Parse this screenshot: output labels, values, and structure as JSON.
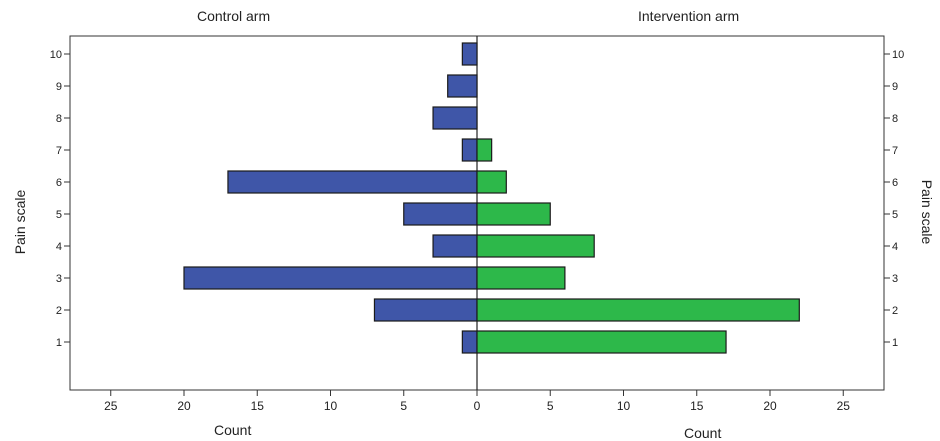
{
  "chart_data": {
    "type": "bar",
    "orientation": "horizontal-pyramid",
    "categories": [
      "1",
      "2",
      "3",
      "4",
      "5",
      "6",
      "7",
      "8",
      "9",
      "10"
    ],
    "series": [
      {
        "name": "Control arm",
        "values": [
          1,
          7,
          20,
          3,
          5,
          17,
          1,
          3,
          2,
          1
        ],
        "color": "#3F56A8"
      },
      {
        "name": "Intervention arm",
        "values": [
          17,
          22,
          6,
          8,
          5,
          2,
          1,
          0,
          0,
          0
        ],
        "color": "#2DB84A"
      }
    ],
    "xlabel_left": "Count",
    "xlabel_right": "Count",
    "ylabel_left": "Pain scale",
    "ylabel_right": "Pain scale",
    "xlim": [
      0,
      27
    ],
    "xticks": [
      0,
      5,
      10,
      15,
      20,
      25
    ],
    "grid": false
  }
}
